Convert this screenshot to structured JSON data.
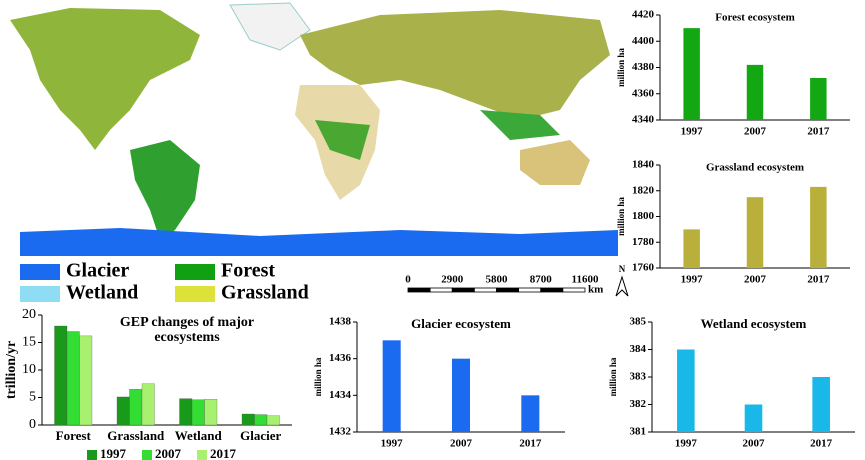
{
  "map": {
    "legend": [
      {
        "label": "Glacier",
        "color": "#1a6bf0"
      },
      {
        "label": "Wetland",
        "color": "#8fdcf5"
      },
      {
        "label": "Forest",
        "color": "#11a011"
      },
      {
        "label": "Grassland",
        "color": "#dde23a"
      }
    ],
    "scale_labels": [
      "0",
      "2900",
      "5800",
      "8700",
      "11600"
    ],
    "scale_unit": "km",
    "north": "N"
  },
  "chart_data": [
    {
      "type": "bar",
      "title": "Forest ecosystem",
      "y_label": "million ha",
      "categories": [
        "1997",
        "2007",
        "2017"
      ],
      "values": [
        4410,
        4382,
        4372
      ],
      "color": "#13a813",
      "ylim": [
        4340,
        4420
      ],
      "yticks": [
        4340,
        4360,
        4380,
        4400,
        4420
      ]
    },
    {
      "type": "bar",
      "title": "Grassland ecosystem",
      "y_label": "million ha",
      "categories": [
        "1997",
        "2007",
        "2017"
      ],
      "values": [
        1790,
        1815,
        1823
      ],
      "color": "#b8b03a",
      "ylim": [
        1760,
        1840
      ],
      "yticks": [
        1760,
        1780,
        1800,
        1820,
        1840
      ]
    },
    {
      "type": "grouped_bar",
      "title": [
        "GEP changes of major",
        "ecosystems"
      ],
      "y_label": "trillion/yr",
      "categories": [
        "Forest",
        "Grassland",
        "Wetland",
        "Glacier"
      ],
      "series": [
        {
          "name": "1997",
          "color": "#1a9a1a",
          "values": [
            18,
            5.1,
            4.8,
            2.0
          ]
        },
        {
          "name": "2007",
          "color": "#33dd33",
          "values": [
            17,
            6.5,
            4.6,
            1.9
          ]
        },
        {
          "name": "2017",
          "color": "#a8f070",
          "values": [
            16.2,
            7.5,
            4.7,
            1.7
          ]
        }
      ],
      "ylim": [
        0,
        20
      ],
      "yticks": [
        0,
        5,
        10,
        15,
        20
      ]
    },
    {
      "type": "bar",
      "title": "Glacier ecosystem",
      "y_label": "million ha",
      "categories": [
        "1997",
        "2007",
        "2017"
      ],
      "values": [
        1437,
        1436,
        1434
      ],
      "color": "#1a6bf0",
      "ylim": [
        1432,
        1438
      ],
      "yticks": [
        1432,
        1434,
        1436,
        1438
      ]
    },
    {
      "type": "bar",
      "title": "Wetland ecosystem",
      "y_label": "million ha",
      "categories": [
        "1997",
        "2007",
        "2017"
      ],
      "values": [
        384,
        382,
        383
      ],
      "color": "#1ab8e8",
      "ylim": [
        381,
        385
      ],
      "yticks": [
        381,
        382,
        383,
        384,
        385
      ]
    }
  ]
}
